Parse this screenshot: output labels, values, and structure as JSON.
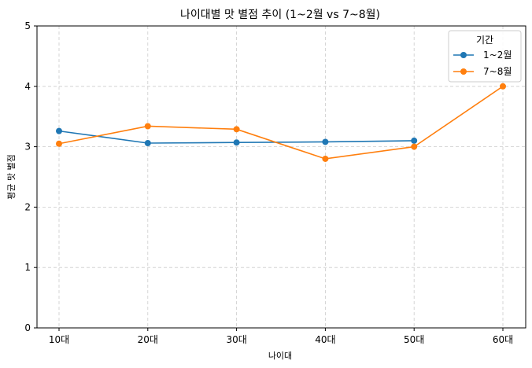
{
  "chart_data": {
    "type": "line",
    "title": "나이대별 맛 별점 추이 (1~2월 vs 7~8월)",
    "xlabel": "나이대",
    "ylabel": "평균 맛 별점",
    "categories": [
      "10대",
      "20대",
      "30대",
      "40대",
      "50대",
      "60대"
    ],
    "ylim": [
      0,
      5
    ],
    "yticks": [
      "0",
      "1",
      "2",
      "3",
      "4",
      "5"
    ],
    "grid": true,
    "legend": {
      "title": "기간",
      "placement": "top-right"
    },
    "series": [
      {
        "name": "1~2월",
        "color": "#1f77b4",
        "values": [
          3.26,
          3.06,
          3.07,
          3.08,
          3.1,
          null
        ]
      },
      {
        "name": "7~8월",
        "color": "#ff7f0e",
        "values": [
          3.05,
          3.34,
          3.29,
          2.8,
          3.0,
          4.0
        ]
      }
    ]
  }
}
